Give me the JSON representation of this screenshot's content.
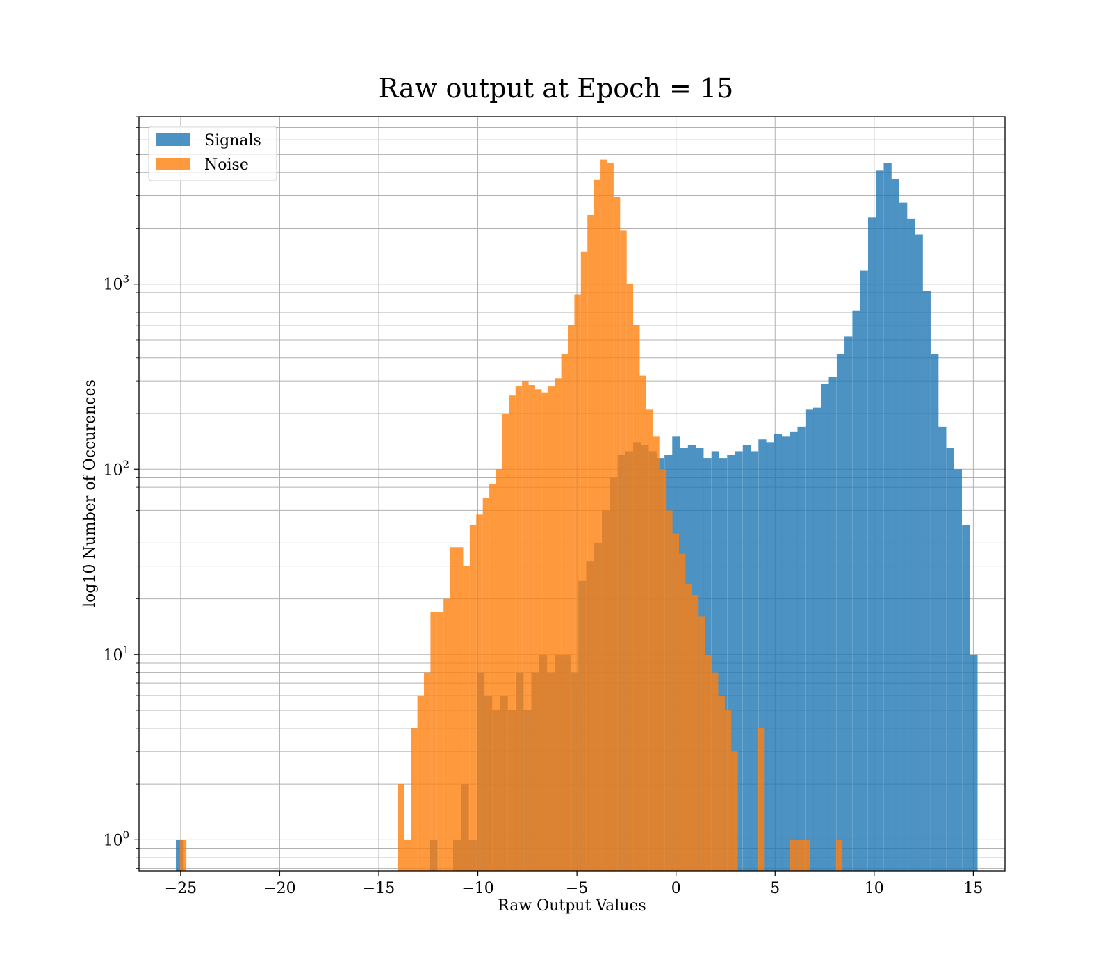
{
  "chart_data": {
    "type": "histogram",
    "title": "Raw output at Epoch = 15",
    "xlabel": "Raw Output Values",
    "ylabel": "log10 Number of Occurences",
    "xlim": [
      -27.1,
      16.6
    ],
    "ylim": [
      0.68,
      8000
    ],
    "yscale": "log",
    "grid": true,
    "legend_position": "upper-left",
    "x_ticks": [
      -25,
      -20,
      -15,
      -10,
      -5,
      0,
      5,
      10,
      15
    ],
    "x_tick_labels": [
      "−25",
      "−20",
      "−15",
      "−10",
      "−5",
      "0",
      "5",
      "10",
      "15"
    ],
    "y_ticks": [
      {
        "value": 1,
        "base": "10",
        "exp": "0"
      },
      {
        "value": 10,
        "base": "10",
        "exp": "1"
      },
      {
        "value": 100,
        "base": "10",
        "exp": "2"
      },
      {
        "value": 1000,
        "base": "10",
        "exp": "3"
      }
    ],
    "series": [
      {
        "name": "Signals",
        "color": "#1f77b4",
        "opacity": 0.8,
        "bin_width": 0.395,
        "bins": [
          [
            -25.24,
            1
          ],
          [
            -12.44,
            1
          ],
          [
            -11.25,
            1
          ],
          [
            -10.85,
            2
          ],
          [
            -10.46,
            1
          ],
          [
            -10.06,
            8
          ],
          [
            -9.67,
            6
          ],
          [
            -9.27,
            5
          ],
          [
            -8.88,
            6
          ],
          [
            -8.48,
            5
          ],
          [
            -8.09,
            8
          ],
          [
            -7.69,
            5
          ],
          [
            -7.3,
            8
          ],
          [
            -6.9,
            10
          ],
          [
            -6.51,
            8
          ],
          [
            -6.11,
            10
          ],
          [
            -5.72,
            10
          ],
          [
            -5.32,
            8
          ],
          [
            -4.93,
            25
          ],
          [
            -4.53,
            32
          ],
          [
            -4.14,
            40
          ],
          [
            -3.74,
            60
          ],
          [
            -3.35,
            90
          ],
          [
            -2.95,
            120
          ],
          [
            -2.56,
            125
          ],
          [
            -2.16,
            140
          ],
          [
            -1.77,
            135
          ],
          [
            -1.37,
            125
          ],
          [
            -0.98,
            115
          ],
          [
            -0.58,
            120
          ],
          [
            -0.19,
            150
          ],
          [
            0.21,
            130
          ],
          [
            0.6,
            135
          ],
          [
            1.0,
            130
          ],
          [
            1.39,
            115
          ],
          [
            1.79,
            125
          ],
          [
            2.18,
            115
          ],
          [
            2.58,
            120
          ],
          [
            2.97,
            125
          ],
          [
            3.37,
            135
          ],
          [
            3.76,
            125
          ],
          [
            4.16,
            145
          ],
          [
            4.55,
            140
          ],
          [
            4.95,
            155
          ],
          [
            5.34,
            150
          ],
          [
            5.74,
            160
          ],
          [
            6.13,
            170
          ],
          [
            6.53,
            210
          ],
          [
            6.92,
            215
          ],
          [
            7.32,
            290
          ],
          [
            7.71,
            315
          ],
          [
            8.11,
            420
          ],
          [
            8.5,
            520
          ],
          [
            8.9,
            720
          ],
          [
            9.29,
            1180
          ],
          [
            9.69,
            2300
          ],
          [
            10.08,
            4100
          ],
          [
            10.48,
            4500
          ],
          [
            10.87,
            3700
          ],
          [
            11.27,
            2750
          ],
          [
            11.66,
            2250
          ],
          [
            12.06,
            1850
          ],
          [
            12.45,
            920
          ],
          [
            12.85,
            420
          ],
          [
            13.24,
            170
          ],
          [
            13.64,
            130
          ],
          [
            14.03,
            100
          ],
          [
            14.43,
            50
          ],
          [
            14.82,
            10
          ]
        ]
      },
      {
        "name": "Noise",
        "color": "#ff7f0e",
        "opacity": 0.8,
        "bin_width": 0.33,
        "bins": [
          [
            -25.04,
            1
          ],
          [
            -14.04,
            2
          ],
          [
            -13.71,
            1
          ],
          [
            -13.38,
            4
          ],
          [
            -13.05,
            6
          ],
          [
            -12.72,
            8
          ],
          [
            -12.39,
            17
          ],
          [
            -12.06,
            17
          ],
          [
            -11.73,
            20
          ],
          [
            -11.4,
            38
          ],
          [
            -11.07,
            38
          ],
          [
            -10.74,
            30
          ],
          [
            -10.41,
            50
          ],
          [
            -10.08,
            57
          ],
          [
            -9.75,
            70
          ],
          [
            -9.42,
            83
          ],
          [
            -9.09,
            100
          ],
          [
            -8.76,
            200
          ],
          [
            -8.43,
            250
          ],
          [
            -8.1,
            280
          ],
          [
            -7.77,
            300
          ],
          [
            -7.44,
            285
          ],
          [
            -7.11,
            270
          ],
          [
            -6.78,
            260
          ],
          [
            -6.45,
            280
          ],
          [
            -6.12,
            310
          ],
          [
            -5.79,
            420
          ],
          [
            -5.46,
            600
          ],
          [
            -5.13,
            880
          ],
          [
            -4.8,
            1500
          ],
          [
            -4.47,
            2350
          ],
          [
            -4.14,
            3650
          ],
          [
            -3.81,
            4700
          ],
          [
            -3.48,
            4500
          ],
          [
            -3.15,
            2950
          ],
          [
            -2.82,
            1950
          ],
          [
            -2.49,
            1000
          ],
          [
            -2.16,
            600
          ],
          [
            -1.83,
            320
          ],
          [
            -1.5,
            210
          ],
          [
            -1.17,
            150
          ],
          [
            -0.84,
            100
          ],
          [
            -0.51,
            60
          ],
          [
            -0.18,
            45
          ],
          [
            0.15,
            35
          ],
          [
            0.48,
            24
          ],
          [
            0.81,
            21
          ],
          [
            1.14,
            16
          ],
          [
            1.47,
            10
          ],
          [
            1.8,
            8
          ],
          [
            2.13,
            6
          ],
          [
            2.46,
            5
          ],
          [
            2.79,
            3
          ],
          [
            3.12,
            0
          ],
          [
            3.45,
            0
          ],
          [
            3.78,
            0
          ],
          [
            4.11,
            4
          ],
          [
            4.44,
            0
          ],
          [
            4.77,
            0
          ],
          [
            5.1,
            0
          ],
          [
            5.43,
            0
          ],
          [
            5.76,
            1
          ],
          [
            6.09,
            1
          ],
          [
            6.42,
            1
          ],
          [
            6.75,
            0
          ],
          [
            7.08,
            0
          ],
          [
            7.41,
            0
          ],
          [
            7.74,
            0
          ],
          [
            8.07,
            1
          ]
        ]
      }
    ]
  }
}
